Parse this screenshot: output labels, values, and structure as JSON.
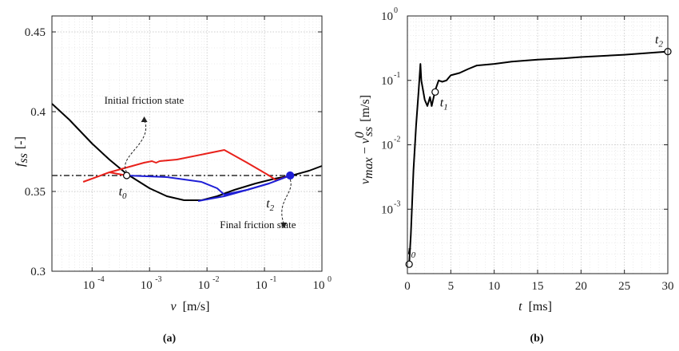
{
  "chart_data": [
    {
      "type": "line",
      "panel_label": "(a)",
      "xlabel_symbol": "v",
      "xlabel_unit": "[m/s]",
      "ylabel_symbol": "f",
      "ylabel_sub": "ss",
      "ylabel_unit": "[-]",
      "xscale": "log",
      "xlim": [
        2e-05,
        1
      ],
      "ylim": [
        0.3,
        0.46
      ],
      "grid": true,
      "x_ticks": [
        {
          "base": "10",
          "exp": "-4",
          "value": 0.0001
        },
        {
          "base": "10",
          "exp": "-3",
          "value": 0.001
        },
        {
          "base": "10",
          "exp": "-2",
          "value": 0.01
        },
        {
          "base": "10",
          "exp": "-1",
          "value": 0.1
        },
        {
          "base": "10",
          "exp": "0",
          "value": 1
        }
      ],
      "y_ticks": [
        {
          "label": "0.3",
          "value": 0.3
        },
        {
          "label": "0.35",
          "value": 0.35
        },
        {
          "label": "0.4",
          "value": 0.4
        },
        {
          "label": "0.45",
          "value": 0.45
        }
      ],
      "series": [
        {
          "color": "#000000",
          "style": "solid",
          "points": [
            [
              2e-05,
              0.405
            ],
            [
              4e-05,
              0.395
            ],
            [
              0.0001,
              0.38
            ],
            [
              0.0002,
              0.37
            ],
            [
              0.0004,
              0.361
            ],
            [
              0.001,
              0.352
            ],
            [
              0.002,
              0.347
            ],
            [
              0.004,
              0.3445
            ],
            [
              0.008,
              0.3445
            ],
            [
              0.015,
              0.347
            ],
            [
              0.03,
              0.351
            ],
            [
              0.07,
              0.355
            ],
            [
              0.15,
              0.358
            ],
            [
              0.3,
              0.36
            ],
            [
              0.6,
              0.363
            ],
            [
              1,
              0.366
            ]
          ]
        },
        {
          "color": "#000000",
          "style": "dashdot",
          "points": [
            [
              2e-05,
              0.36
            ],
            [
              1,
              0.36
            ]
          ]
        },
        {
          "color": "#e8211b",
          "style": "solid",
          "points": [
            [
              7e-05,
              0.356
            ],
            [
              0.0002,
              0.362
            ],
            [
              0.0004,
              0.365
            ],
            [
              0.0008,
              0.368
            ],
            [
              0.0011,
              0.369
            ],
            [
              0.0013,
              0.368
            ],
            [
              0.0015,
              0.369
            ],
            [
              0.003,
              0.37
            ],
            [
              0.02,
              0.376
            ],
            [
              0.05,
              0.368
            ],
            [
              0.12,
              0.36
            ],
            [
              0.16,
              0.357
            ],
            [
              0.28,
              0.36
            ]
          ]
        },
        {
          "color": "#e8211b",
          "style": "solid",
          "points": [
            [
              0.0002,
              0.362
            ],
            [
              0.0004,
              0.36
            ]
          ]
        },
        {
          "color": "#1f1fd6",
          "style": "solid",
          "points": [
            [
              0.0004,
              0.36
            ],
            [
              0.002,
              0.359
            ],
            [
              0.008,
              0.356
            ],
            [
              0.015,
              0.352
            ],
            [
              0.02,
              0.348
            ],
            [
              0.05,
              0.351
            ],
            [
              0.12,
              0.355
            ],
            [
              0.28,
              0.36
            ]
          ]
        },
        {
          "color": "#1f1fd6",
          "style": "solid",
          "points": [
            [
              0.007,
              0.344
            ],
            [
              0.02,
              0.347
            ],
            [
              0.05,
              0.351
            ],
            [
              0.12,
              0.355
            ],
            [
              0.2,
              0.358
            ],
            [
              0.28,
              0.36
            ]
          ]
        }
      ],
      "markers": [
        {
          "label": "t",
          "sub": "0",
          "x": 0.0004,
          "y": 0.36,
          "style": "open",
          "color": "#000000"
        },
        {
          "label": "t",
          "sub": "2",
          "x": 0.28,
          "y": 0.36,
          "style": "filled",
          "color": "#1f1fd6"
        }
      ],
      "annotations": {
        "initial": "Initial friction state",
        "final": "Final friction state"
      }
    },
    {
      "type": "line",
      "panel_label": "(b)",
      "xlabel_symbol": "t",
      "xlabel_unit": "[ms]",
      "ylabel_symbol": "v",
      "ylabel_sub": "max",
      "ylabel_minus": "−",
      "ylabel_symbol2": "v",
      "ylabel_sub2": "ss",
      "ylabel_sup2": "0",
      "ylabel_unit": "[m/s]",
      "yscale": "log",
      "xlim": [
        0,
        30
      ],
      "ylim": [
        0.0001,
        1
      ],
      "grid": true,
      "x_ticks": [
        {
          "label": "0",
          "value": 0
        },
        {
          "label": "5",
          "value": 5
        },
        {
          "label": "10",
          "value": 10
        },
        {
          "label": "15",
          "value": 15
        },
        {
          "label": "20",
          "value": 20
        },
        {
          "label": "25",
          "value": 25
        },
        {
          "label": "30",
          "value": 30
        }
      ],
      "y_ticks": [
        {
          "base": "10",
          "exp": "-3",
          "value": 0.001
        },
        {
          "base": "10",
          "exp": "-2",
          "value": 0.01
        },
        {
          "base": "10",
          "exp": "-1",
          "value": 0.1
        },
        {
          "base": "10",
          "exp": "0",
          "value": 1
        }
      ],
      "series": [
        {
          "color": "#000000",
          "style": "solid",
          "points": [
            [
              0.2,
              0.00014
            ],
            [
              0.4,
              0.0004
            ],
            [
              0.7,
              0.004
            ],
            [
              1.0,
              0.02
            ],
            [
              1.3,
              0.07
            ],
            [
              1.5,
              0.18
            ],
            [
              1.6,
              0.1
            ],
            [
              2.0,
              0.05
            ],
            [
              2.3,
              0.04
            ],
            [
              2.6,
              0.055
            ],
            [
              2.8,
              0.04
            ],
            [
              3.2,
              0.07
            ],
            [
              3.6,
              0.1
            ],
            [
              4,
              0.095
            ],
            [
              4.5,
              0.1
            ],
            [
              5,
              0.12
            ],
            [
              6,
              0.13
            ],
            [
              7,
              0.15
            ],
            [
              8,
              0.17
            ],
            [
              10,
              0.18
            ],
            [
              12,
              0.195
            ],
            [
              15,
              0.21
            ],
            [
              18,
              0.22
            ],
            [
              20,
              0.23
            ],
            [
              25,
              0.25
            ],
            [
              30,
              0.28
            ]
          ]
        }
      ],
      "markers": [
        {
          "label": "t",
          "sub": "0",
          "x": 0.2,
          "y": 0.00014,
          "style": "open",
          "color": "#000000"
        },
        {
          "label": "t",
          "sub": "1",
          "x": 3.2,
          "y": 0.066,
          "style": "open",
          "color": "#000000"
        },
        {
          "label": "t",
          "sub": "2",
          "x": 30,
          "y": 0.28,
          "style": "open",
          "color": "#000000"
        }
      ]
    }
  ]
}
